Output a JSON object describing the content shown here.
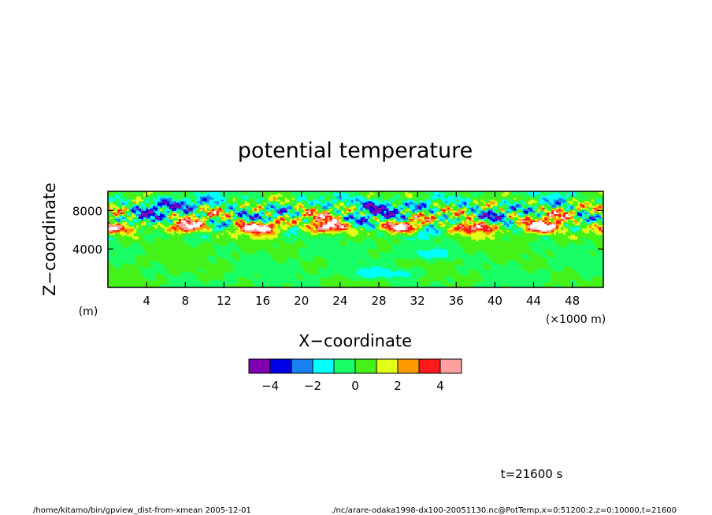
{
  "chart_data": {
    "type": "heatmap",
    "title": "potential temperature",
    "xlabel": "X−coordinate",
    "ylabel": "Z−coordinate",
    "x_unit": "(×1000 m)",
    "y_unit": "(m)",
    "x_ticks": [
      "4",
      "8",
      "12",
      "16",
      "20",
      "24",
      "28",
      "32",
      "36",
      "40",
      "44",
      "48"
    ],
    "x_tick_values": [
      4,
      8,
      12,
      16,
      20,
      24,
      28,
      32,
      36,
      40,
      44,
      48
    ],
    "y_ticks": [
      "4000",
      "8000"
    ],
    "y_tick_values": [
      4000,
      8000
    ],
    "xlim": [
      0,
      51.2
    ],
    "ylim": [
      0,
      10000
    ],
    "colorbar": {
      "colors": [
        "#7f00b0",
        "#0000e6",
        "#1a82f0",
        "#00ffff",
        "#19ff66",
        "#44f21a",
        "#e2ff1a",
        "#ff9a00",
        "#ff1a1a",
        "#ff9f9f"
      ],
      "tick_labels": [
        "−4",
        "−2",
        "0",
        "2",
        "4"
      ],
      "tick_values": [
        -4,
        -2,
        0,
        2,
        4
      ],
      "boundaries": [
        -5,
        -4,
        -3,
        -2,
        -1,
        0,
        1,
        2,
        3,
        4,
        5
      ]
    },
    "time_label": "t=21600 s",
    "footer_left": "/home/kitamo/bin/gpview_dist-from-xmean  2005-12-01",
    "footer_right": "./nc/arare-odaka1998-dx100-20051130.nc@PotTemp,x=0:51200:2,z=0:10000,t=21600"
  }
}
